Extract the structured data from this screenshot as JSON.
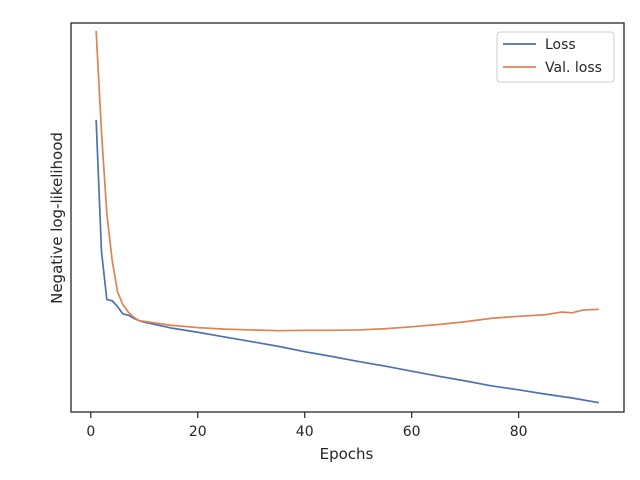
{
  "chart_data": {
    "type": "line",
    "title": "",
    "xlabel": "Epochs",
    "ylabel": "Negative log-likelihood",
    "xlim": [
      -3.7,
      99.7
    ],
    "ylim": [
      0.0,
      1.0
    ],
    "y_ticks_shown": false,
    "x_ticks": [
      0,
      20,
      40,
      60,
      80
    ],
    "x_tick_labels": [
      "0",
      "20",
      "40",
      "60",
      "80"
    ],
    "grid": false,
    "legend_position": "top-right",
    "series": [
      {
        "name": "Loss",
        "color": "#4c72b0",
        "x": [
          1,
          2,
          3,
          4,
          5,
          6,
          7,
          8,
          9,
          10,
          15,
          20,
          25,
          30,
          35,
          40,
          45,
          50,
          55,
          60,
          65,
          70,
          75,
          80,
          85,
          90,
          95
        ],
        "y": [
          0.751,
          0.413,
          0.289,
          0.286,
          0.271,
          0.252,
          0.249,
          0.241,
          0.235,
          0.231,
          0.216,
          0.205,
          0.193,
          0.181,
          0.169,
          0.155,
          0.143,
          0.13,
          0.118,
          0.105,
          0.092,
          0.08,
          0.067,
          0.057,
          0.046,
          0.036,
          0.024
        ]
      },
      {
        "name": "Val. loss",
        "color": "#dd8452",
        "x": [
          1,
          2,
          3,
          4,
          5,
          6,
          7,
          8,
          9,
          10,
          12,
          15,
          20,
          25,
          30,
          35,
          40,
          45,
          50,
          55,
          60,
          65,
          70,
          75,
          80,
          85,
          88,
          90,
          92,
          95
        ],
        "y": [
          0.98,
          0.72,
          0.51,
          0.39,
          0.309,
          0.276,
          0.257,
          0.244,
          0.235,
          0.233,
          0.229,
          0.223,
          0.217,
          0.213,
          0.211,
          0.209,
          0.21,
          0.21,
          0.211,
          0.214,
          0.219,
          0.225,
          0.232,
          0.241,
          0.246,
          0.25,
          0.257,
          0.255,
          0.262,
          0.264
        ]
      }
    ]
  }
}
